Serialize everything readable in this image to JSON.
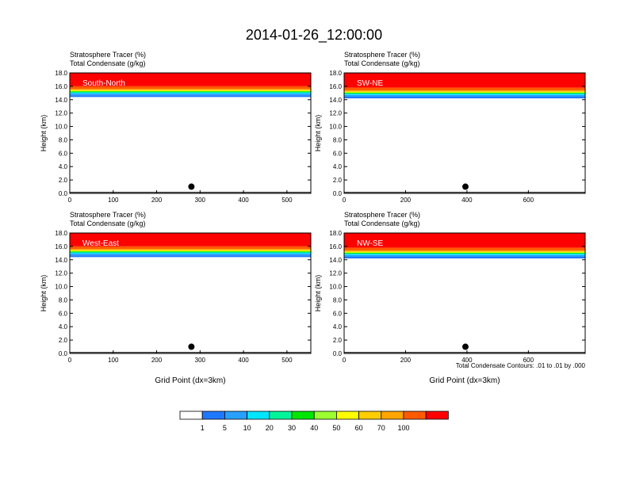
{
  "title": "2014-01-26_12:00:00",
  "ylabel": "Height (km)",
  "xlabel": "Grid Point (dx=3km)",
  "contour_note": "Total Condensate Contours: .01 to .01 by .000",
  "colorbar": {
    "labels": [
      "1",
      "5",
      "10",
      "20",
      "30",
      "40",
      "50",
      "60",
      "70",
      "100"
    ],
    "colors": [
      "#ffffff",
      "#1e78ff",
      "#28a0ff",
      "#00e6ff",
      "#00f59b",
      "#00e600",
      "#9bff32",
      "#ffff00",
      "#ffcd00",
      "#ffa500",
      "#ff5a00",
      "#ff0000"
    ]
  },
  "chart_data": [
    {
      "type": "heatmap",
      "subtitle_1": "Stratosphere Tracer   (%)",
      "subtitle_2": "Total Condensate   (g/kg)",
      "panel_label": "South-North",
      "ylim": [
        0,
        18
      ],
      "yticks": [
        "0.0",
        "2.0",
        "4.0",
        "6.0",
        "8.0",
        "10.0",
        "12.0",
        "14.0",
        "16.0",
        "18.0"
      ],
      "xlim": [
        0,
        555
      ],
      "xticks": [
        "0",
        "100",
        "200",
        "300",
        "400",
        "500"
      ],
      "xtick_values": [
        0,
        100,
        200,
        300,
        400,
        500
      ],
      "tropopause_km": 15.2,
      "marker_x": 280
    },
    {
      "type": "heatmap",
      "subtitle_1": "Stratosphere Tracer   (%)",
      "subtitle_2": "Total Condensate   (g/kg)",
      "panel_label": "SW-NE",
      "ylim": [
        0,
        18
      ],
      "yticks": [
        "0.0",
        "2.0",
        "4.0",
        "6.0",
        "8.0",
        "10.0",
        "12.0",
        "14.0",
        "16.0",
        "18.0"
      ],
      "xlim": [
        0,
        785
      ],
      "xticks": [
        "0",
        "200",
        "400",
        "600"
      ],
      "xtick_values": [
        0,
        200,
        400,
        600
      ],
      "tropopause_km": 15.0,
      "marker_x": 395
    },
    {
      "type": "heatmap",
      "subtitle_1": "Stratosphere Tracer   (%)",
      "subtitle_2": "Total Condensate   (g/kg)",
      "panel_label": "West-East",
      "ylim": [
        0,
        18
      ],
      "yticks": [
        "0.0",
        "2.0",
        "4.0",
        "6.0",
        "8.0",
        "10.0",
        "12.0",
        "14.0",
        "16.0",
        "18.0"
      ],
      "xlim": [
        0,
        555
      ],
      "xticks": [
        "0",
        "100",
        "200",
        "300",
        "400",
        "500"
      ],
      "xtick_values": [
        0,
        100,
        200,
        300,
        400,
        500
      ],
      "tropopause_km": 15.2,
      "marker_x": 280
    },
    {
      "type": "heatmap",
      "subtitle_1": "Stratosphere Tracer   (%)",
      "subtitle_2": "Total Condensate   (g/kg)",
      "panel_label": "NW-SE",
      "ylim": [
        0,
        18
      ],
      "yticks": [
        "0.0",
        "2.0",
        "4.0",
        "6.0",
        "8.0",
        "10.0",
        "12.0",
        "14.0",
        "16.0",
        "18.0"
      ],
      "xlim": [
        0,
        785
      ],
      "xticks": [
        "0",
        "200",
        "400",
        "600"
      ],
      "xtick_values": [
        0,
        200,
        400,
        600
      ],
      "tropopause_km": 15.0,
      "marker_x": 395
    }
  ]
}
